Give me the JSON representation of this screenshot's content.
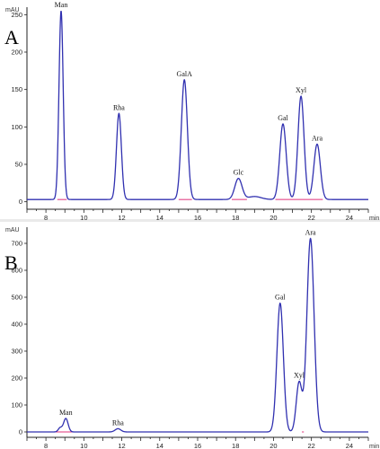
{
  "chart_data": [
    {
      "type": "line",
      "panel": "A",
      "yunit": "mAU",
      "xunit": "min",
      "xlim": [
        7,
        25
      ],
      "ylim": [
        -10,
        260
      ],
      "xticks": [
        "8",
        "10",
        "12",
        "14",
        "16",
        "18",
        "20",
        "22",
        "24"
      ],
      "yticks": [
        "0",
        "50",
        "100",
        "150",
        "200",
        "250"
      ],
      "peaks": [
        {
          "name": "Man",
          "x": 8.8,
          "y": 252,
          "w": 0.11
        },
        {
          "name": "Rha",
          "x": 11.85,
          "y": 115,
          "w": 0.13
        },
        {
          "name": "GalA",
          "x": 15.3,
          "y": 160,
          "w": 0.16
        },
        {
          "name": "Glc",
          "x": 18.15,
          "y": 28,
          "w": 0.19
        },
        {
          "name": "Gal",
          "x": 20.5,
          "y": 101,
          "w": 0.17
        },
        {
          "name": "Xyl",
          "x": 21.45,
          "y": 138,
          "w": 0.16
        },
        {
          "name": "Ara",
          "x": 22.3,
          "y": 74,
          "w": 0.17
        }
      ],
      "minor_peaks": [
        {
          "x": 19.0,
          "y": 4,
          "w": 0.35
        }
      ],
      "baseline_level": 3,
      "baseline_segments": [
        [
          8.6,
          9.1
        ],
        [
          15.0,
          15.7
        ],
        [
          17.8,
          18.6
        ],
        [
          20.1,
          22.6
        ]
      ]
    },
    {
      "type": "line",
      "panel": "B",
      "yunit": "mAU",
      "xunit": "min",
      "xlim": [
        7,
        25
      ],
      "ylim": [
        -20,
        760
      ],
      "xticks": [
        "8",
        "10",
        "12",
        "14",
        "16",
        "18",
        "20",
        "22",
        "24"
      ],
      "yticks": [
        "0",
        "100",
        "200",
        "300",
        "400",
        "500",
        "600",
        "700"
      ],
      "peaks": [
        {
          "name": "Man",
          "x": 9.05,
          "y": 50,
          "w": 0.12
        },
        {
          "name": "Rha",
          "x": 11.8,
          "y": 12,
          "w": 0.15
        },
        {
          "name": "Gal",
          "x": 20.35,
          "y": 478,
          "w": 0.17
        },
        {
          "name": "Xyl",
          "x": 21.35,
          "y": 183,
          "w": 0.15
        },
        {
          "name": "Ara",
          "x": 21.95,
          "y": 718,
          "w": 0.19
        }
      ],
      "minor_peaks": [
        {
          "x": 8.75,
          "y": 15,
          "w": 0.1
        }
      ],
      "baseline_level": 0,
      "baseline_segments": [
        [
          8.5,
          9.4
        ],
        [
          21.5,
          21.6
        ]
      ]
    }
  ]
}
